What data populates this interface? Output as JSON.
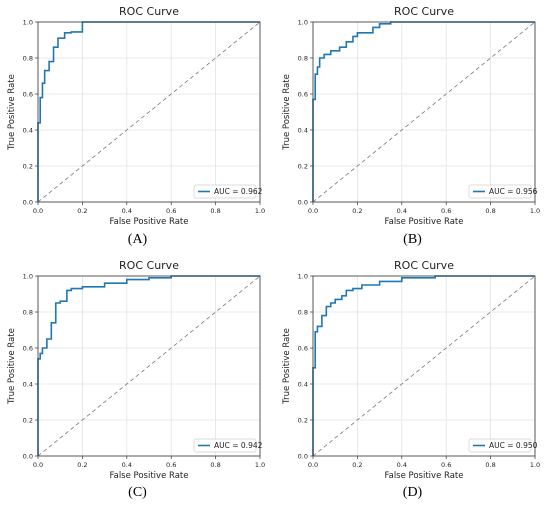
{
  "chart_data": [
    {
      "type": "line",
      "panel_label": "(A)",
      "title": "ROC Curve",
      "xlabel": "False Positive Rate",
      "ylabel": "True Positive Rate",
      "xlim": [
        0,
        1
      ],
      "ylim": [
        0,
        1
      ],
      "xticks": [
        "0.0",
        "0.2",
        "0.4",
        "0.6",
        "0.8",
        "1.0"
      ],
      "yticks": [
        "0.0",
        "0.2",
        "0.4",
        "0.6",
        "0.8",
        "1.0"
      ],
      "grid": true,
      "legend_position": "lower-right",
      "series": [
        {
          "name": "AUC = 0.962",
          "color": "#1f77b4",
          "x": [
            0,
            0,
            0.01,
            0.01,
            0.02,
            0.02,
            0.03,
            0.03,
            0.05,
            0.05,
            0.07,
            0.07,
            0.09,
            0.09,
            0.12,
            0.12,
            0.15,
            0.15,
            0.2,
            0.2,
            1.0
          ],
          "y": [
            0,
            0.44,
            0.44,
            0.58,
            0.58,
            0.66,
            0.66,
            0.73,
            0.73,
            0.78,
            0.78,
            0.86,
            0.86,
            0.91,
            0.91,
            0.94,
            0.94,
            0.945,
            0.945,
            1.0,
            1.0
          ]
        },
        {
          "name": "chance",
          "color": "#777777",
          "dashed": true,
          "x": [
            0,
            1
          ],
          "y": [
            0,
            1
          ]
        }
      ]
    },
    {
      "type": "line",
      "panel_label": "(B)",
      "title": "ROC Curve",
      "xlabel": "False Positive Rate",
      "ylabel": "True Positive Rate",
      "xlim": [
        0,
        1
      ],
      "ylim": [
        0,
        1
      ],
      "xticks": [
        "0.0",
        "0.2",
        "0.4",
        "0.6",
        "0.8",
        "1.0"
      ],
      "yticks": [
        "0.0",
        "0.2",
        "0.4",
        "0.6",
        "0.8",
        "1.0"
      ],
      "grid": true,
      "legend_position": "lower-right",
      "series": [
        {
          "name": "AUC = 0.956",
          "color": "#1f77b4",
          "x": [
            0,
            0,
            0.01,
            0.01,
            0.02,
            0.02,
            0.03,
            0.03,
            0.05,
            0.05,
            0.08,
            0.08,
            0.12,
            0.12,
            0.15,
            0.15,
            0.18,
            0.18,
            0.2,
            0.2,
            0.27,
            0.27,
            0.3,
            0.3,
            0.35,
            0.35,
            1.0
          ],
          "y": [
            0,
            0.57,
            0.57,
            0.71,
            0.71,
            0.75,
            0.75,
            0.8,
            0.8,
            0.82,
            0.82,
            0.84,
            0.84,
            0.86,
            0.86,
            0.89,
            0.89,
            0.92,
            0.92,
            0.94,
            0.94,
            0.97,
            0.97,
            0.99,
            0.99,
            1.0,
            1.0
          ]
        },
        {
          "name": "chance",
          "color": "#777777",
          "dashed": true,
          "x": [
            0,
            1
          ],
          "y": [
            0,
            1
          ]
        }
      ]
    },
    {
      "type": "line",
      "panel_label": "(C)",
      "title": "ROC Curve",
      "xlabel": "False Positive Rate",
      "ylabel": "True Positive Rate",
      "xlim": [
        0,
        1
      ],
      "ylim": [
        0,
        1
      ],
      "xticks": [
        "0.0",
        "0.2",
        "0.4",
        "0.6",
        "0.8",
        "1.0"
      ],
      "yticks": [
        "0.0",
        "0.2",
        "0.4",
        "0.6",
        "0.8",
        "1.0"
      ],
      "grid": true,
      "legend_position": "lower-right",
      "series": [
        {
          "name": "AUC = 0.942",
          "color": "#1f77b4",
          "x": [
            0,
            0,
            0.01,
            0.01,
            0.02,
            0.02,
            0.04,
            0.04,
            0.06,
            0.06,
            0.08,
            0.08,
            0.1,
            0.1,
            0.13,
            0.13,
            0.15,
            0.15,
            0.2,
            0.2,
            0.3,
            0.3,
            0.4,
            0.4,
            0.5,
            0.5,
            0.6,
            0.6,
            1.0
          ],
          "y": [
            0,
            0.54,
            0.54,
            0.57,
            0.57,
            0.6,
            0.6,
            0.65,
            0.65,
            0.74,
            0.74,
            0.85,
            0.85,
            0.86,
            0.86,
            0.92,
            0.92,
            0.93,
            0.93,
            0.94,
            0.94,
            0.96,
            0.96,
            0.98,
            0.98,
            0.99,
            0.99,
            1.0,
            1.0
          ]
        },
        {
          "name": "chance",
          "color": "#777777",
          "dashed": true,
          "x": [
            0,
            1
          ],
          "y": [
            0,
            1
          ]
        }
      ]
    },
    {
      "type": "line",
      "panel_label": "(D)",
      "title": "ROC Curve",
      "xlabel": "False Positive Rate",
      "ylabel": "True Positive Rate",
      "xlim": [
        0,
        1
      ],
      "ylim": [
        0,
        1
      ],
      "xticks": [
        "0.0",
        "0.2",
        "0.4",
        "0.6",
        "0.8",
        "1.0"
      ],
      "yticks": [
        "0.0",
        "0.2",
        "0.4",
        "0.6",
        "0.8",
        "1.0"
      ],
      "grid": true,
      "legend_position": "lower-right",
      "series": [
        {
          "name": "AUC = 0.950",
          "color": "#1f77b4",
          "x": [
            0,
            0,
            0.01,
            0.01,
            0.02,
            0.02,
            0.04,
            0.04,
            0.06,
            0.06,
            0.08,
            0.08,
            0.1,
            0.1,
            0.13,
            0.13,
            0.15,
            0.15,
            0.18,
            0.18,
            0.22,
            0.22,
            0.3,
            0.3,
            0.4,
            0.4,
            0.55,
            0.55,
            1.0
          ],
          "y": [
            0,
            0.49,
            0.49,
            0.69,
            0.69,
            0.72,
            0.72,
            0.78,
            0.78,
            0.83,
            0.83,
            0.85,
            0.85,
            0.87,
            0.87,
            0.89,
            0.89,
            0.92,
            0.92,
            0.93,
            0.93,
            0.95,
            0.95,
            0.97,
            0.97,
            0.99,
            0.99,
            1.0,
            1.0
          ]
        },
        {
          "name": "chance",
          "color": "#777777",
          "dashed": true,
          "x": [
            0,
            1
          ],
          "y": [
            0,
            1
          ]
        }
      ]
    }
  ]
}
